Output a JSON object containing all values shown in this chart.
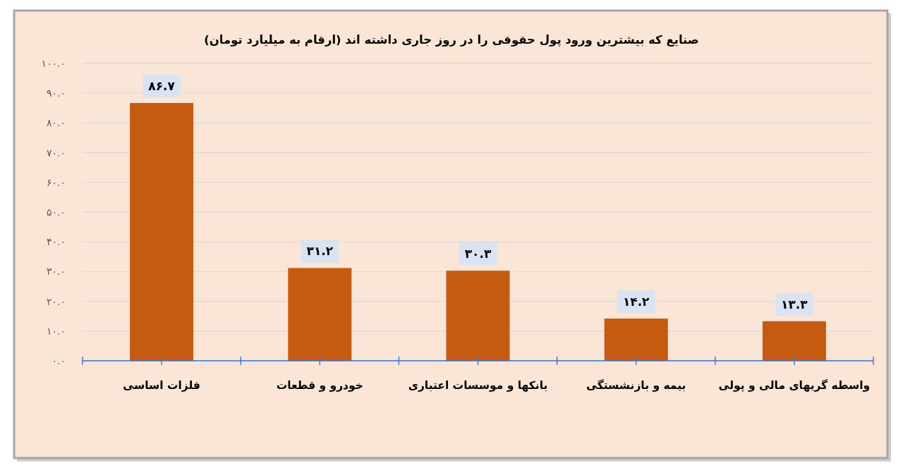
{
  "chart_data": {
    "type": "bar",
    "title": "صنایع که بیشترین ورود پول حقوقی را در روز جاری داشته اند (ارقام به میلیارد تومان)",
    "categories": [
      "فلزات اساسی",
      "خودرو و قطعات",
      "بانکها و موسسات اعتباری",
      "بیمه و بازنشستگی",
      "واسطه گریهای مالی و پولی"
    ],
    "values": [
      86.7,
      31.2,
      30.3,
      14.2,
      13.3
    ],
    "value_labels": [
      "۸۶.۷",
      "۳۱.۲",
      "۳۰.۳",
      "۱۴.۲",
      "۱۳.۳"
    ],
    "color": "#c55a11",
    "ylim": [
      0,
      100
    ],
    "yticks": [
      {
        "value": 0,
        "label": "۰.۰"
      },
      {
        "value": 10,
        "label": "۱۰.۰"
      },
      {
        "value": 20,
        "label": "۲۰.۰"
      },
      {
        "value": 30,
        "label": "۳۰.۰"
      },
      {
        "value": 40,
        "label": "۴۰.۰"
      },
      {
        "value": 50,
        "label": "۵۰.۰"
      },
      {
        "value": 60,
        "label": "۶۰.۰"
      },
      {
        "value": 70,
        "label": "۷۰.۰"
      },
      {
        "value": 80,
        "label": "۸۰.۰"
      },
      {
        "value": 90,
        "label": "۹۰.۰"
      },
      {
        "value": 100,
        "label": "۱۰۰.۰"
      }
    ],
    "grid": "y"
  }
}
